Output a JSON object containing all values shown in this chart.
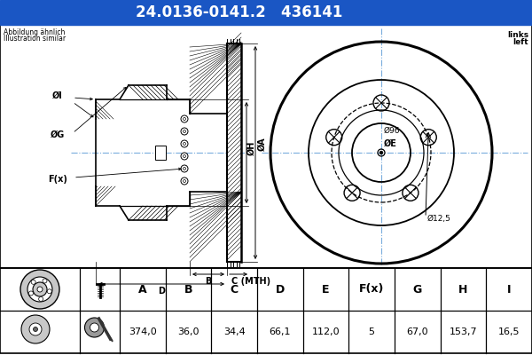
{
  "title_part": "24.0136-0141.2",
  "title_code": "436141",
  "title_bg": "#1a56c4",
  "title_fg": "#ffffff",
  "subtitle_left1": "Abbildung ähnlich",
  "subtitle_left2": "Illustration similar",
  "subtitle_right1": "links",
  "subtitle_right2": "left",
  "table_headers": [
    "A",
    "B",
    "C",
    "D",
    "E",
    "F(x)",
    "G",
    "H",
    "I"
  ],
  "table_values": [
    "374,0",
    "36,0",
    "34,4",
    "66,1",
    "112,0",
    "5",
    "67,0",
    "153,7",
    "16,5"
  ],
  "label_A": "ØA",
  "label_B": "B",
  "label_C": "C (MTH)",
  "label_D": "D",
  "label_E": "ØE",
  "label_F": "F(x)",
  "label_G": "ØG",
  "label_H": "ØH",
  "label_I": "ØI",
  "label_96": "Ø96",
  "label_125": "Ø12,5",
  "bg_color": "#ffffff",
  "line_color": "#000000",
  "cl_color": "#7aaddd"
}
